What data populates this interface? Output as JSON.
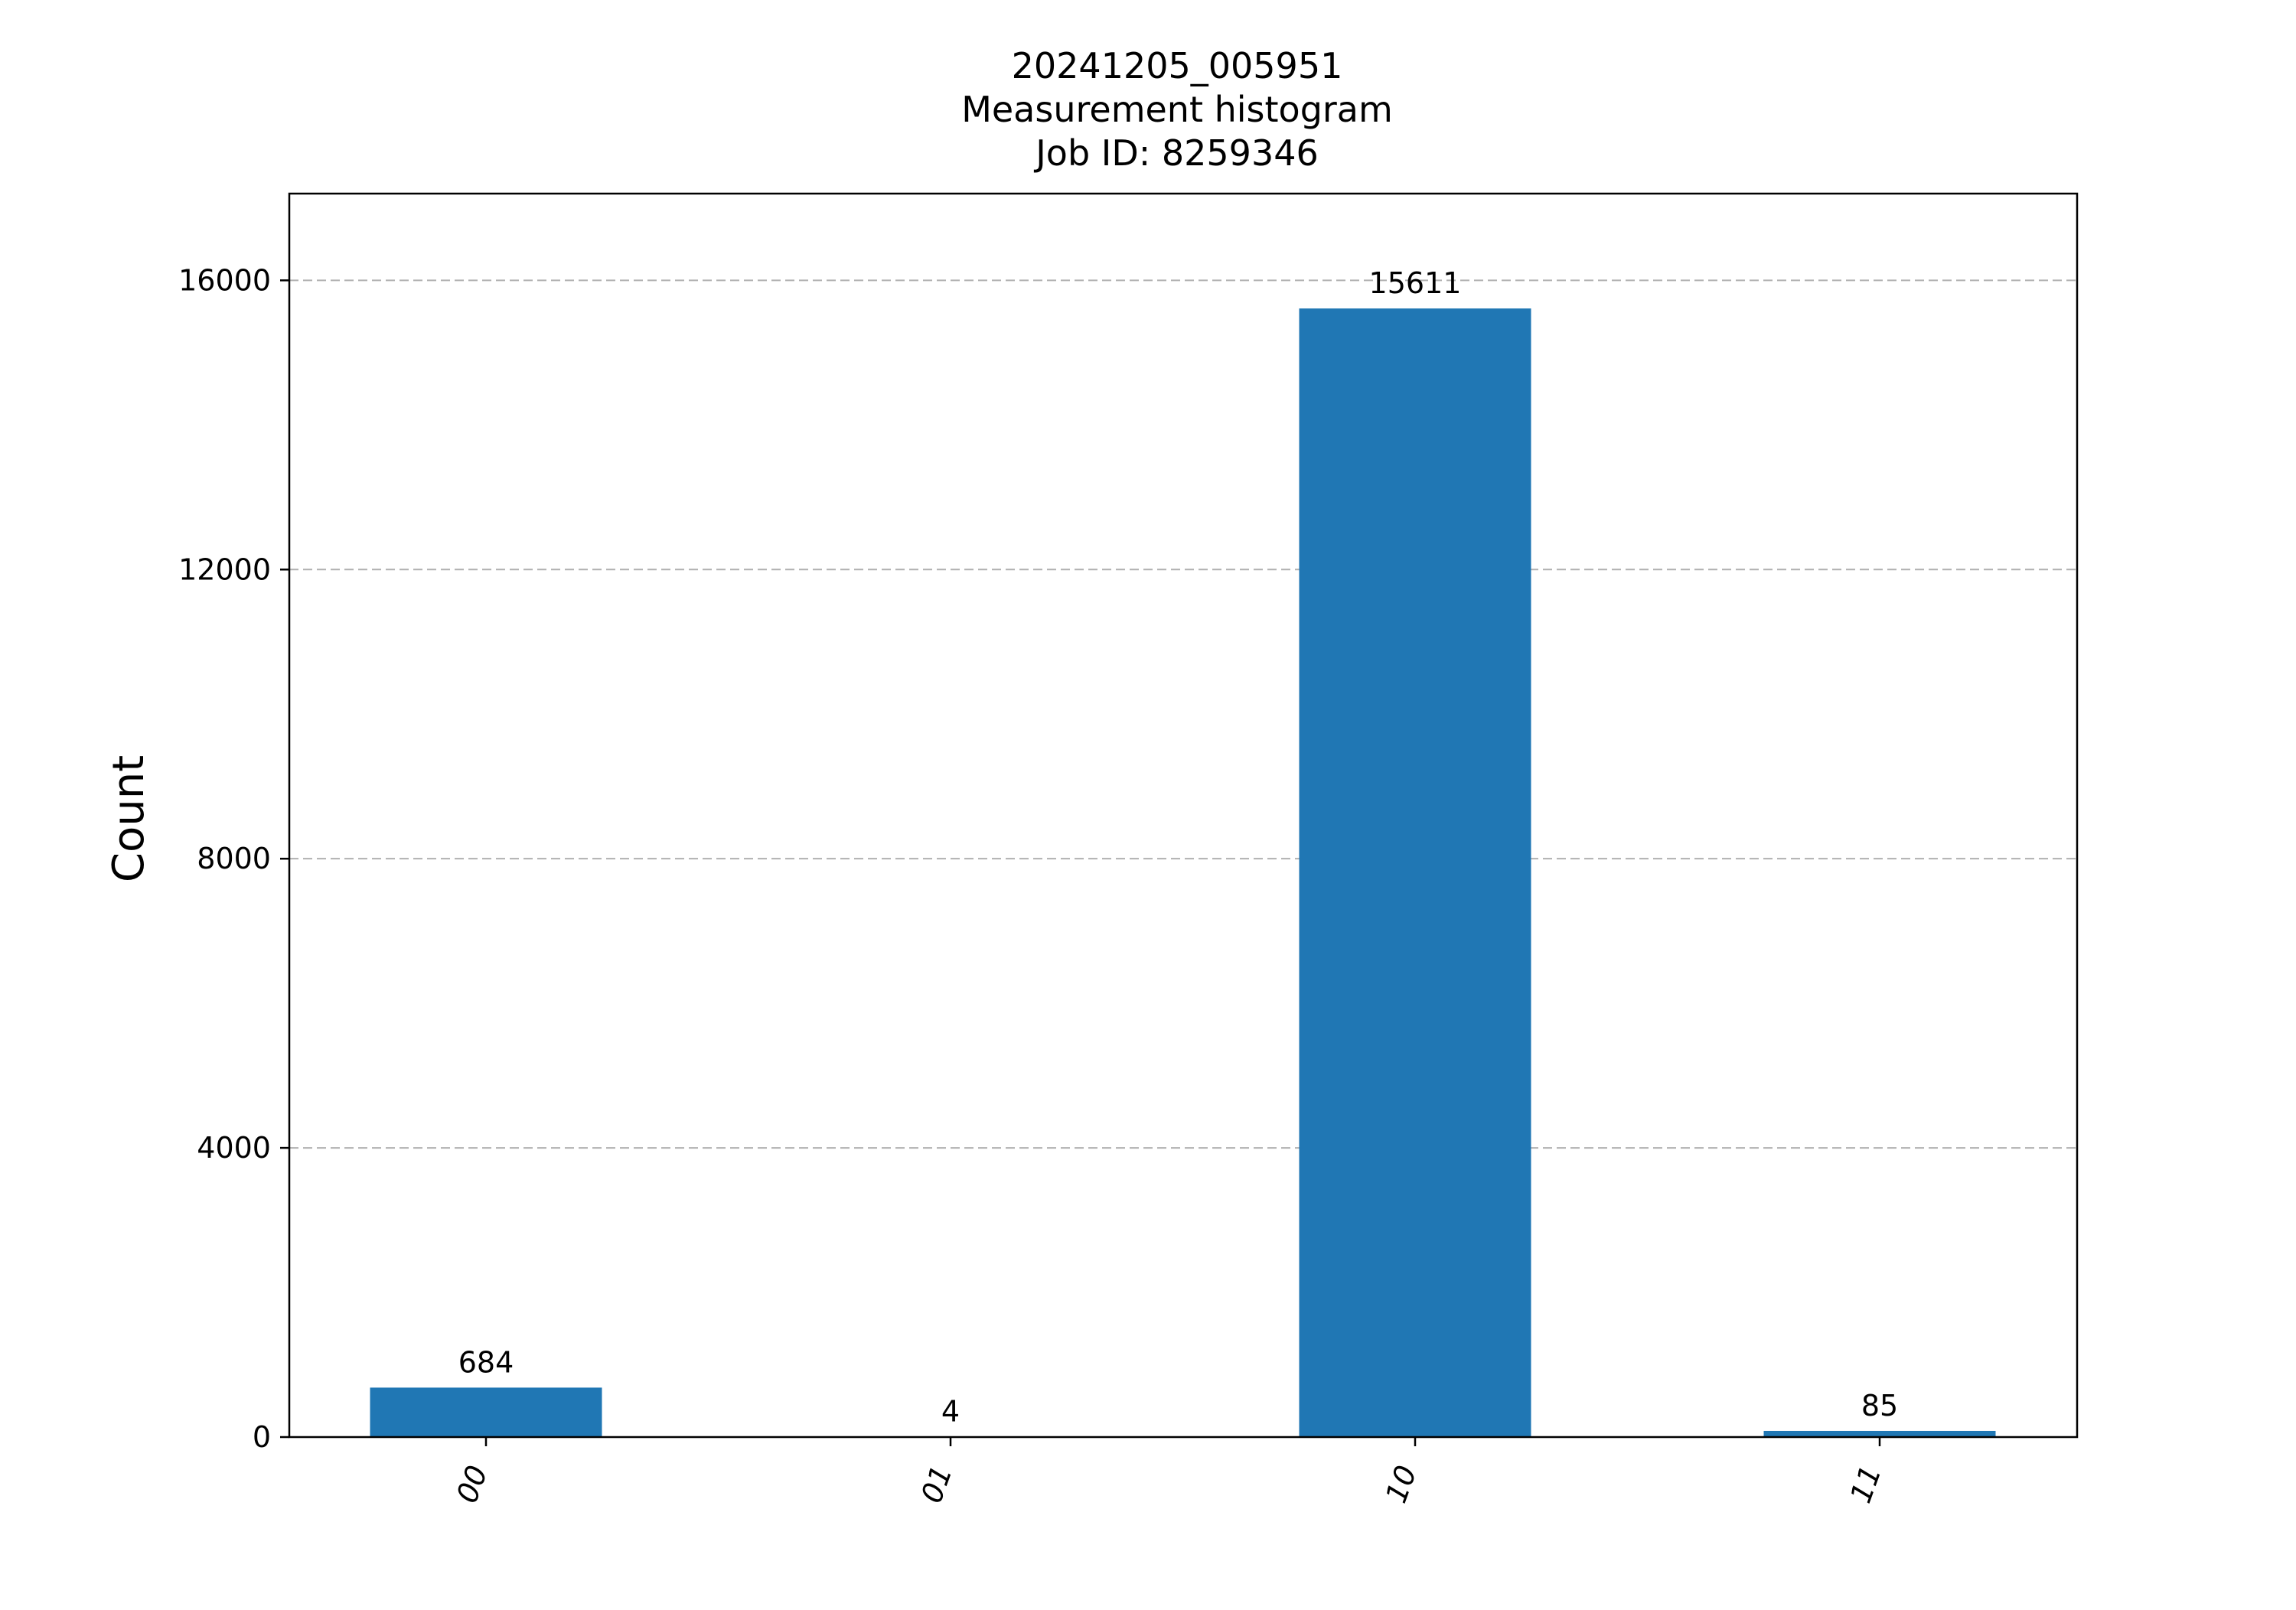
{
  "chart_data": {
    "type": "bar",
    "title_lines": [
      "20241205_005951",
      "Measurement histogram",
      "Job ID: 8259346"
    ],
    "xlabel": "",
    "ylabel": "Count",
    "categories": [
      "00",
      "01",
      "10",
      "11"
    ],
    "values": [
      684,
      4,
      15611,
      85
    ],
    "data_labels": [
      "684",
      "4",
      "15611",
      "85"
    ],
    "ylim": [
      0,
      17200
    ],
    "yticks": [
      0,
      4000,
      8000,
      12000,
      16000
    ],
    "ytick_labels": [
      "0",
      "4000",
      "8000",
      "12000",
      "16000"
    ],
    "grid": "y-dashed",
    "bar_color": "#2077b4",
    "grid_color": "#b0b0b0"
  }
}
